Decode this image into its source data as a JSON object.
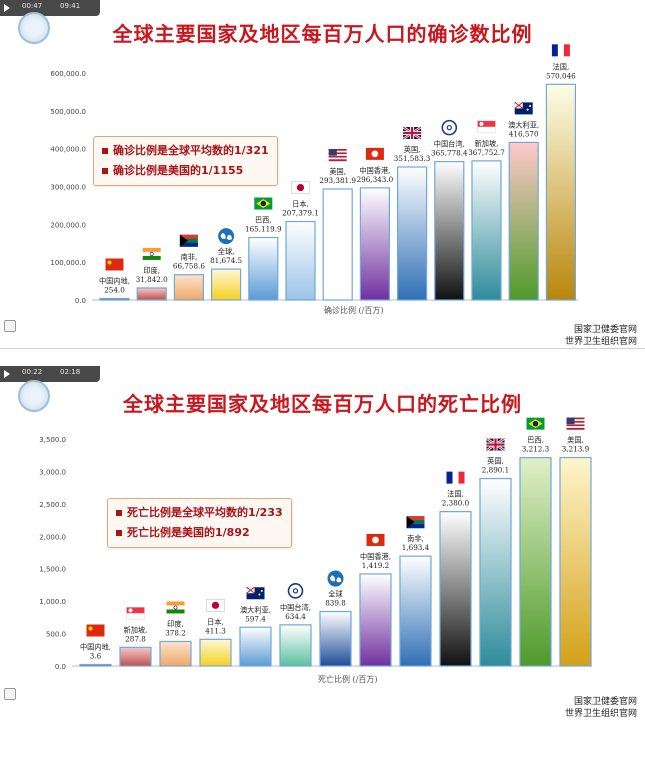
{
  "player": {
    "time_current": "00:47",
    "time_total": "09:41"
  },
  "player_2": {
    "time_current": "00:22",
    "time_total": "02:18"
  },
  "source": {
    "line1": "国家卫健委官网",
    "line2": "世界卫生组织官网"
  },
  "colors": {
    "title": "#c8171e",
    "callout_text": "#a8141a",
    "bar_outline": "#5b9bd5"
  },
  "chart_data": [
    {
      "type": "bar",
      "title": "全球主要国家及地区每百万人口的确诊数比例",
      "xlabel": "确诊比例 (/百万)",
      "ylabel": "",
      "ylim": [
        0,
        600000
      ],
      "yticks": [
        "0.0",
        "100,000.0",
        "200,000.0",
        "300,000.0",
        "400,000.0",
        "500,000.0",
        "600,000.0"
      ],
      "callouts": [
        "确诊比例是全球平均数的1/321",
        "确诊比例是美国的1/1155"
      ],
      "bars": [
        {
          "label": "中国内地,",
          "value_text": "254.0",
          "value": 254.0,
          "flag": "cn",
          "fill": [
            "#c0504d",
            "#c0504d"
          ]
        },
        {
          "label": "印度,",
          "value_text": "31,842.0",
          "value": 31842.0,
          "flag": "in",
          "fill": [
            "#c0504d",
            "#f3c9c9"
          ]
        },
        {
          "label": "南非,",
          "value_text": "66,758.6",
          "value": 66758.6,
          "flag": "za",
          "fill": [
            "#f0a868",
            "#fde4cc"
          ]
        },
        {
          "label": "全球,",
          "value_text": "81,674.5",
          "value": 81674.5,
          "flag": "globe",
          "fill": [
            "#f5d020",
            "#fff8d8"
          ]
        },
        {
          "label": "巴西,",
          "value_text": "165,119.9",
          "value": 165119.9,
          "flag": "br",
          "fill": [
            "#5b9bd5",
            "#ffffff"
          ]
        },
        {
          "label": "日本,",
          "value_text": "207,379.1",
          "value": 207379.1,
          "flag": "jp",
          "fill": [
            "#9cc3e8",
            "#ffffff"
          ]
        },
        {
          "label": "美国,",
          "value_text": "293,381.9",
          "value": 293381.9,
          "flag": "us",
          "fill": [
            "#ffffff",
            "#ffffff"
          ]
        },
        {
          "label": "中国香港,",
          "value_text": "296,343.0",
          "value": 296343.0,
          "flag": "hk",
          "fill": [
            "#7030a0",
            "#ffffff"
          ]
        },
        {
          "label": "英国,",
          "value_text": "351,583.3",
          "value": 351583.3,
          "flag": "gb",
          "fill": [
            "#2f6fb5",
            "#ffffff"
          ]
        },
        {
          "label": "中国台湾,",
          "value_text": "365,778.4",
          "value": 365778.4,
          "flag": "tw",
          "fill": [
            "#111111",
            "#ffffff"
          ]
        },
        {
          "label": "新加坡,",
          "value_text": "367,752.7",
          "value": 367752.7,
          "flag": "sg",
          "fill": [
            "#2e8b9a",
            "#ffffff"
          ]
        },
        {
          "label": "澳大利亚,",
          "value_text": "416,570",
          "value": 416570,
          "flag": "au",
          "fill": [
            "#4e9a2a",
            "#ffc9c9"
          ]
        },
        {
          "label": "法国,",
          "value_text": "570,046",
          "value": 570046,
          "flag": "fr",
          "fill": [
            "#b8860b",
            "#fffde8"
          ]
        }
      ]
    },
    {
      "type": "bar",
      "title": "全球主要国家及地区每百万人口的死亡比例",
      "xlabel": "死亡比例 (/百万)",
      "ylabel": "",
      "ylim": [
        0,
        3500
      ],
      "yticks": [
        "0.0",
        "500.0",
        "1,000.0",
        "1,500.0",
        "2,000.0",
        "2,500.0",
        "3,000.0",
        "3,500.0"
      ],
      "callouts": [
        "死亡比例是全球平均数的1/233",
        "死亡比例是美国的1/892"
      ],
      "bars": [
        {
          "label": "中国内地,",
          "value_text": "3.6",
          "value": 3.6,
          "flag": "cn",
          "fill": [
            "#c0504d",
            "#c0504d"
          ]
        },
        {
          "label": "新加坡,",
          "value_text": "287.8",
          "value": 287.8,
          "flag": "sg",
          "fill": [
            "#c0504d",
            "#f3c9c9"
          ]
        },
        {
          "label": "印度,",
          "value_text": "378.2",
          "value": 378.2,
          "flag": "in",
          "fill": [
            "#f0a868",
            "#fde4cc"
          ]
        },
        {
          "label": "日本,",
          "value_text": "411.3",
          "value": 411.3,
          "flag": "jp",
          "fill": [
            "#f5d020",
            "#fff8d8"
          ]
        },
        {
          "label": "澳大利亚,",
          "value_text": "597.4",
          "value": 597.4,
          "flag": "au",
          "fill": [
            "#5b9bd5",
            "#ffffff"
          ]
        },
        {
          "label": "中国台湾,",
          "value_text": "634.4",
          "value": 634.4,
          "flag": "tw",
          "fill": [
            "#5cc0a0",
            "#ffffff"
          ]
        },
        {
          "label": "全球",
          "value_text": "839.8",
          "value": 839.8,
          "flag": "globe",
          "fill": [
            "#1f4e9a",
            "#ffffff"
          ]
        },
        {
          "label": "中国香港,",
          "value_text": "1,419.2",
          "value": 1419.2,
          "flag": "hk",
          "fill": [
            "#7030a0",
            "#ffffff"
          ]
        },
        {
          "label": "南非,",
          "value_text": "1,693.4",
          "value": 1693.4,
          "flag": "za",
          "fill": [
            "#2f6fb5",
            "#ffffff"
          ]
        },
        {
          "label": "法国,",
          "value_text": "2,380.0",
          "value": 2380.0,
          "flag": "fr",
          "fill": [
            "#111111",
            "#ffffff"
          ]
        },
        {
          "label": "英国,",
          "value_text": "2,890.1",
          "value": 2890.1,
          "flag": "gb",
          "fill": [
            "#2e8b9a",
            "#ffffff"
          ]
        },
        {
          "label": "巴西,",
          "value_text": "3,212.3",
          "value": 3212.3,
          "flag": "br",
          "fill": [
            "#4e9a2a",
            "#e0f0c8"
          ]
        },
        {
          "label": "美国,",
          "value_text": "3,213.9",
          "value": 3213.9,
          "flag": "us",
          "fill": [
            "#d4a017",
            "#fff5cc"
          ]
        }
      ]
    }
  ]
}
